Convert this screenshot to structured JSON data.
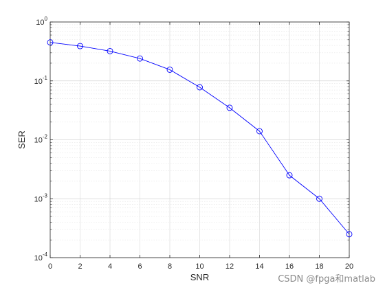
{
  "chart_data": {
    "type": "line",
    "xlabel": "SNR",
    "ylabel": "SER",
    "title": "",
    "x_scale": "linear",
    "y_scale": "log",
    "xlim": [
      0,
      20
    ],
    "ylim": [
      0.0001,
      1
    ],
    "x_ticks": [
      "0",
      "2",
      "4",
      "6",
      "8",
      "10",
      "12",
      "14",
      "16",
      "18",
      "20"
    ],
    "y_ticks": [
      {
        "value": 0.0001,
        "base": "10",
        "exp": "-4"
      },
      {
        "value": 0.001,
        "base": "10",
        "exp": "-3"
      },
      {
        "value": 0.01,
        "base": "10",
        "exp": "-2"
      },
      {
        "value": 0.1,
        "base": "10",
        "exp": "-1"
      },
      {
        "value": 1,
        "base": "10",
        "exp": "0"
      }
    ],
    "grid": true,
    "minor_grid": true,
    "legend": "none",
    "marker": "circle",
    "line_color": "#0000ff",
    "series": [
      {
        "x": [
          0,
          2,
          4,
          6,
          8,
          10,
          12,
          14,
          16,
          18,
          20
        ],
        "y": [
          0.45,
          0.39,
          0.32,
          0.24,
          0.155,
          0.078,
          0.035,
          0.014,
          0.0025,
          0.001,
          0.00025
        ]
      }
    ]
  },
  "watermark": "CSDN @fpga和matlab"
}
